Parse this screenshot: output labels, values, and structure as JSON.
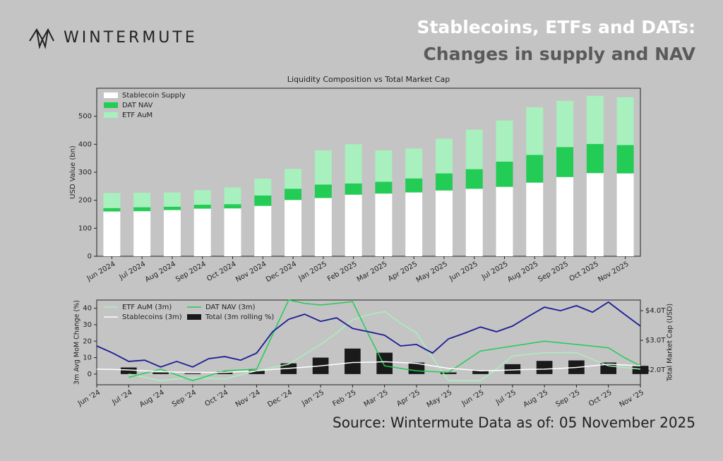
{
  "header": {
    "logo": "WINTERMUTE",
    "title": "Stablecoins, ETFs and DATs:",
    "subtitle": "Changes in supply and NAV"
  },
  "footer": {
    "source": "Source: Wintermute  Data as of: 05 November 2025"
  },
  "chart_data": [
    {
      "type": "bar",
      "stacked": true,
      "title": "Liquidity Composition vs Total Market Cap",
      "ylabel": "USD Value (bn)",
      "categories": [
        "Jun 2024",
        "Jul 2024",
        "Aug 2024",
        "Sep 2024",
        "Oct 2024",
        "Nov 2024",
        "Dec 2024",
        "Jan 2025",
        "Feb 2025",
        "Mar 2025",
        "Apr 2025",
        "May 2025",
        "Jun 2025",
        "Jul 2025",
        "Aug 2025",
        "Sep 2025",
        "Oct 2025",
        "Nov 2025"
      ],
      "series": [
        {
          "name": "Stablecoin Supply",
          "color": "#ffffff",
          "values": [
            160,
            161,
            165,
            170,
            171,
            180,
            201,
            208,
            220,
            224,
            228,
            235,
            241,
            248,
            263,
            283,
            297,
            296
          ]
        },
        {
          "name": "DAT NAV",
          "color": "#22cc55",
          "values": [
            12,
            14,
            12,
            14,
            15,
            37,
            40,
            48,
            40,
            42,
            50,
            61,
            70,
            90,
            99,
            107,
            104,
            101
          ]
        },
        {
          "name": "ETF AuM",
          "color": "#a8f0bd",
          "values": [
            54,
            52,
            51,
            52,
            60,
            60,
            71,
            122,
            140,
            112,
            107,
            124,
            141,
            147,
            170,
            165,
            172,
            171
          ]
        }
      ],
      "ylim": [
        0,
        600
      ],
      "yticks": [
        0,
        100,
        200,
        300,
        400,
        500
      ],
      "legend": "upper left"
    },
    {
      "type": "combo",
      "ylabel": "3m Avg MoM Change (%)",
      "y2label": "Total Market Cap (USD)",
      "categories": [
        "Jun '24",
        null,
        "Jul '24",
        null,
        "Aug '24",
        null,
        "Sep '24",
        null,
        "Oct '24",
        null,
        "Nov '24",
        null,
        "Dec '24",
        null,
        "Jan '25",
        null,
        "Feb '25",
        null,
        "Mar '25",
        null,
        "Apr '25",
        null,
        "May '25",
        null,
        "Jun '25",
        null,
        "Jul '25",
        null,
        "Aug '25",
        null,
        "Sep '25",
        null,
        "Oct '25",
        null,
        "Nov '25"
      ],
      "series": [
        {
          "name": "ETF AuM (3m)",
          "type": "line",
          "color": "#a8f0bd",
          "values": [
            null,
            null,
            0,
            -2,
            -4,
            -3,
            -2,
            -2.5,
            -3,
            -0.5,
            2,
            4,
            6,
            12,
            18,
            25,
            33,
            36,
            38,
            31,
            25,
            10,
            -4,
            -4,
            -4,
            3,
            11,
            12,
            13,
            13,
            13,
            9,
            5,
            4,
            3
          ]
        },
        {
          "name": "DAT NAV (3m)",
          "type": "line",
          "color": "#22cc55",
          "values": [
            null,
            null,
            -2,
            0.5,
            3,
            -0.5,
            -4,
            -1,
            2,
            2.5,
            3,
            24,
            45,
            43,
            42,
            43,
            44,
            24,
            5,
            3.5,
            2,
            1.5,
            1,
            7.5,
            14,
            15.5,
            17,
            18.5,
            20,
            19,
            18,
            17,
            16,
            10,
            5
          ]
        },
        {
          "name": "Stablecoins (3m)",
          "type": "line",
          "color": "#ffffff",
          "values": [
            3,
            2.8,
            2.5,
            2,
            1.5,
            1.2,
            1,
            1,
            1,
            1.5,
            2,
            2.8,
            3.5,
            4.2,
            5,
            6,
            7,
            7.2,
            7.5,
            7,
            6.5,
            5,
            3.5,
            2.8,
            2,
            2.2,
            2.5,
            2.8,
            3,
            3.5,
            4,
            5,
            6,
            5.5,
            5
          ]
        },
        {
          "name": "Total (3m rolling %)",
          "type": "bar",
          "color": "#1a1a1a",
          "values": [
            null,
            null,
            4,
            null,
            1,
            null,
            0.5,
            null,
            1.5,
            null,
            2.5,
            null,
            6.5,
            null,
            10,
            null,
            15.5,
            null,
            13,
            null,
            7,
            null,
            1,
            null,
            2,
            null,
            6,
            null,
            8,
            null,
            8.3,
            null,
            7,
            null,
            5
          ]
        },
        {
          "type": "line",
          "axis": "y2",
          "color": "#1c1c96",
          "values": [
            2.81,
            2.57,
            2.29,
            2.33,
            2.1,
            2.29,
            2.1,
            2.38,
            2.45,
            2.33,
            2.57,
            3.29,
            3.71,
            3.88,
            3.64,
            3.76,
            3.4,
            3.29,
            3.17,
            2.81,
            2.86,
            2.57,
            3.05,
            3.24,
            3.45,
            3.29,
            3.48,
            3.81,
            4.12,
            4.0,
            4.17,
            3.95,
            4.29,
            3.88,
            3.48
          ]
        }
      ],
      "ylim": [
        -6.5,
        45
      ],
      "yticks": [
        0,
        10,
        20,
        30,
        40
      ],
      "y2lim": [
        1.5,
        4.36
      ],
      "y2ticks": [
        {
          "value": 2,
          "label": "$2.0T"
        },
        {
          "value": 3,
          "label": "$3.0T"
        },
        {
          "value": 4,
          "label": "$4.0T"
        }
      ],
      "legend": "upper left"
    }
  ]
}
